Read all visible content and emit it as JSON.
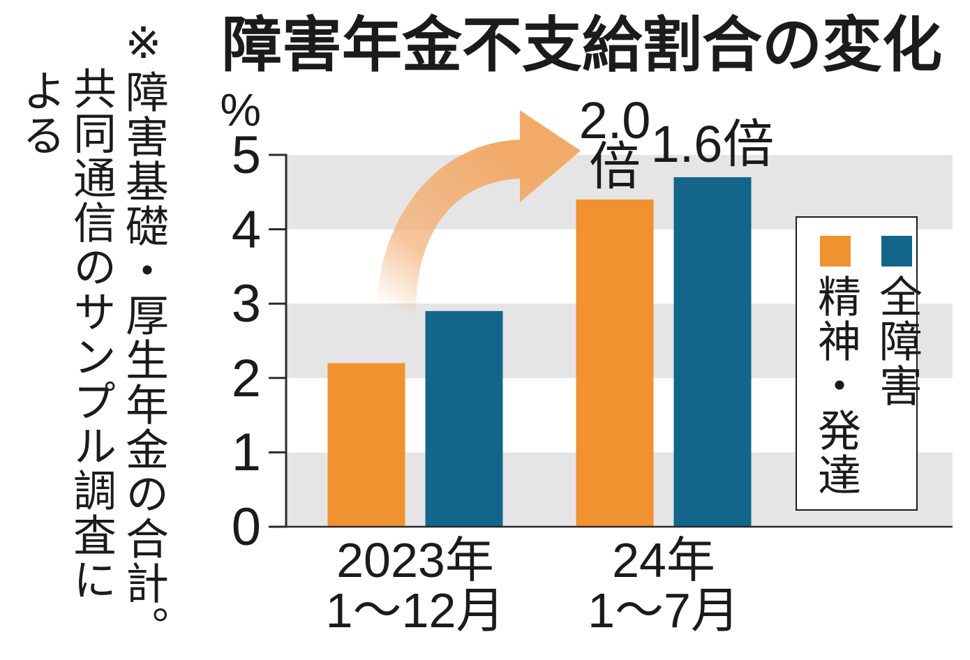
{
  "note": [
    "※障害基礎・厚生年金の合計。",
    "共同通信のサンプル調査に",
    "よる"
  ],
  "chart_data": {
    "type": "bar",
    "title": "障害年金不支給割合の変化",
    "yunit": "%",
    "ylim": [
      0,
      5
    ],
    "yticks": [
      0,
      1,
      2,
      3,
      4,
      5
    ],
    "grid": true,
    "band_color": "#e5e5e5",
    "legend": "right",
    "categories": [
      [
        "2023年",
        "1〜12月"
      ],
      [
        "24年",
        "1〜7月"
      ]
    ],
    "series": [
      {
        "name": "精神・発達",
        "color": "#ef922f",
        "values": [
          2.2,
          4.4
        ],
        "data_labels": [
          null,
          [
            "2.0",
            "倍"
          ]
        ]
      },
      {
        "name": "全障害",
        "color": "#13658a",
        "values": [
          2.9,
          4.7
        ],
        "data_labels": [
          null,
          [
            "1.6倍"
          ]
        ]
      }
    ]
  }
}
